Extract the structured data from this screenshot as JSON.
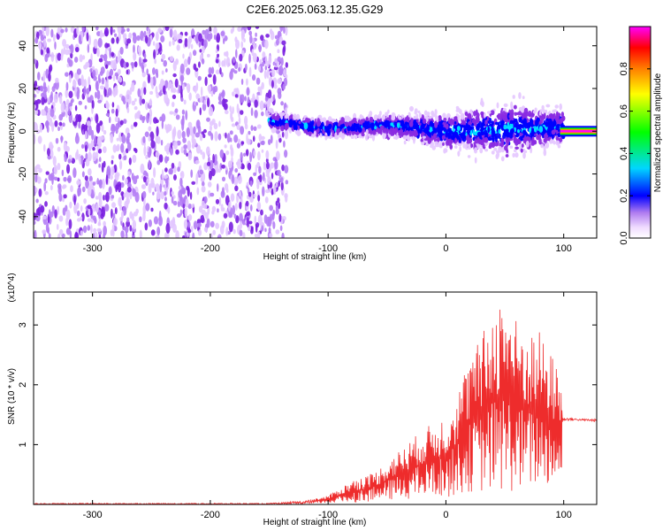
{
  "figure": {
    "title": "C2E6.2025.063.12.35.G29"
  },
  "chart_data": [
    {
      "type": "heatmap",
      "xlabel": "Height of straight line (km)",
      "ylabel": "Frequency (Hz)",
      "xlim": [
        -350,
        128
      ],
      "ylim": [
        -50,
        49
      ],
      "x_ticks": [
        -300,
        -200,
        -100,
        0,
        100
      ],
      "y_ticks": [
        -40,
        -20,
        0,
        20,
        40
      ],
      "colorbar": {
        "label": "Normalized spectral amplitude",
        "range": [
          0,
          1
        ],
        "ticks": [
          0.0,
          0.2,
          0.4,
          0.6,
          0.8
        ],
        "tick_labels": [
          "0.0",
          "0.2",
          "0.4",
          "0.6",
          "0.8"
        ],
        "colormap": [
          "#ffffff",
          "#e6c9ff",
          "#8a2be2",
          "#0000ff",
          "#00e5ff",
          "#00ff00",
          "#ffff00",
          "#ff8c00",
          "#ff0000",
          "#ff00ff"
        ]
      },
      "regions": [
        {
          "x_range": [
            -350,
            -135
          ],
          "y_range": [
            -50,
            49
          ],
          "level": 0.12,
          "description": "broadband noise"
        },
        {
          "x_range": [
            -150,
            100
          ],
          "y_center": [
            [
              -150,
              5
            ],
            [
              -100,
              1
            ],
            [
              -50,
              3
            ],
            [
              0,
              0
            ],
            [
              50,
              1
            ],
            [
              95,
              2
            ]
          ],
          "y_halfwidth": [
            [
              -150,
              5
            ],
            [
              -100,
              6
            ],
            [
              -50,
              7
            ],
            [
              0,
              12
            ],
            [
              50,
              18
            ],
            [
              95,
              12
            ]
          ],
          "level": 0.3
        },
        {
          "x_range": [
            97,
            128
          ],
          "y_center": 0,
          "level": 1.0
        }
      ]
    },
    {
      "type": "line",
      "xlabel": "Height of straight line (km)",
      "ylabel": "SNR (10 * v/v)",
      "y_multiplier": "(x10^4)",
      "xlim": [
        -350,
        128
      ],
      "ylim": [
        0,
        3.55
      ],
      "x_ticks": [
        -300,
        -200,
        -100,
        0,
        100
      ],
      "y_ticks": [
        1,
        2,
        3
      ],
      "color": "#ee2c2c",
      "series": [
        {
          "x": [
            -350,
            -300,
            -250,
            -200,
            -150,
            -120,
            -100,
            -80,
            -60,
            -40,
            -20,
            0,
            10,
            20,
            30,
            40,
            50,
            60,
            70,
            80,
            90,
            98,
            99,
            105,
            115,
            128
          ],
          "y_min": [
            0.0,
            0.0,
            0.0,
            0.0,
            0.0,
            0.01,
            0.02,
            0.03,
            0.05,
            0.08,
            0.1,
            0.12,
            0.15,
            0.2,
            0.2,
            0.2,
            0.2,
            0.2,
            0.25,
            0.3,
            0.3,
            0.3,
            1.4,
            1.4,
            1.4,
            1.38
          ],
          "y_max": [
            0.02,
            0.02,
            0.02,
            0.02,
            0.02,
            0.06,
            0.15,
            0.4,
            0.55,
            0.9,
            1.25,
            1.5,
            1.9,
            2.5,
            2.8,
            3.3,
            3.6,
            3.1,
            2.9,
            2.9,
            2.5,
            2.2,
            1.45,
            1.45,
            1.43,
            1.43
          ]
        }
      ]
    }
  ]
}
